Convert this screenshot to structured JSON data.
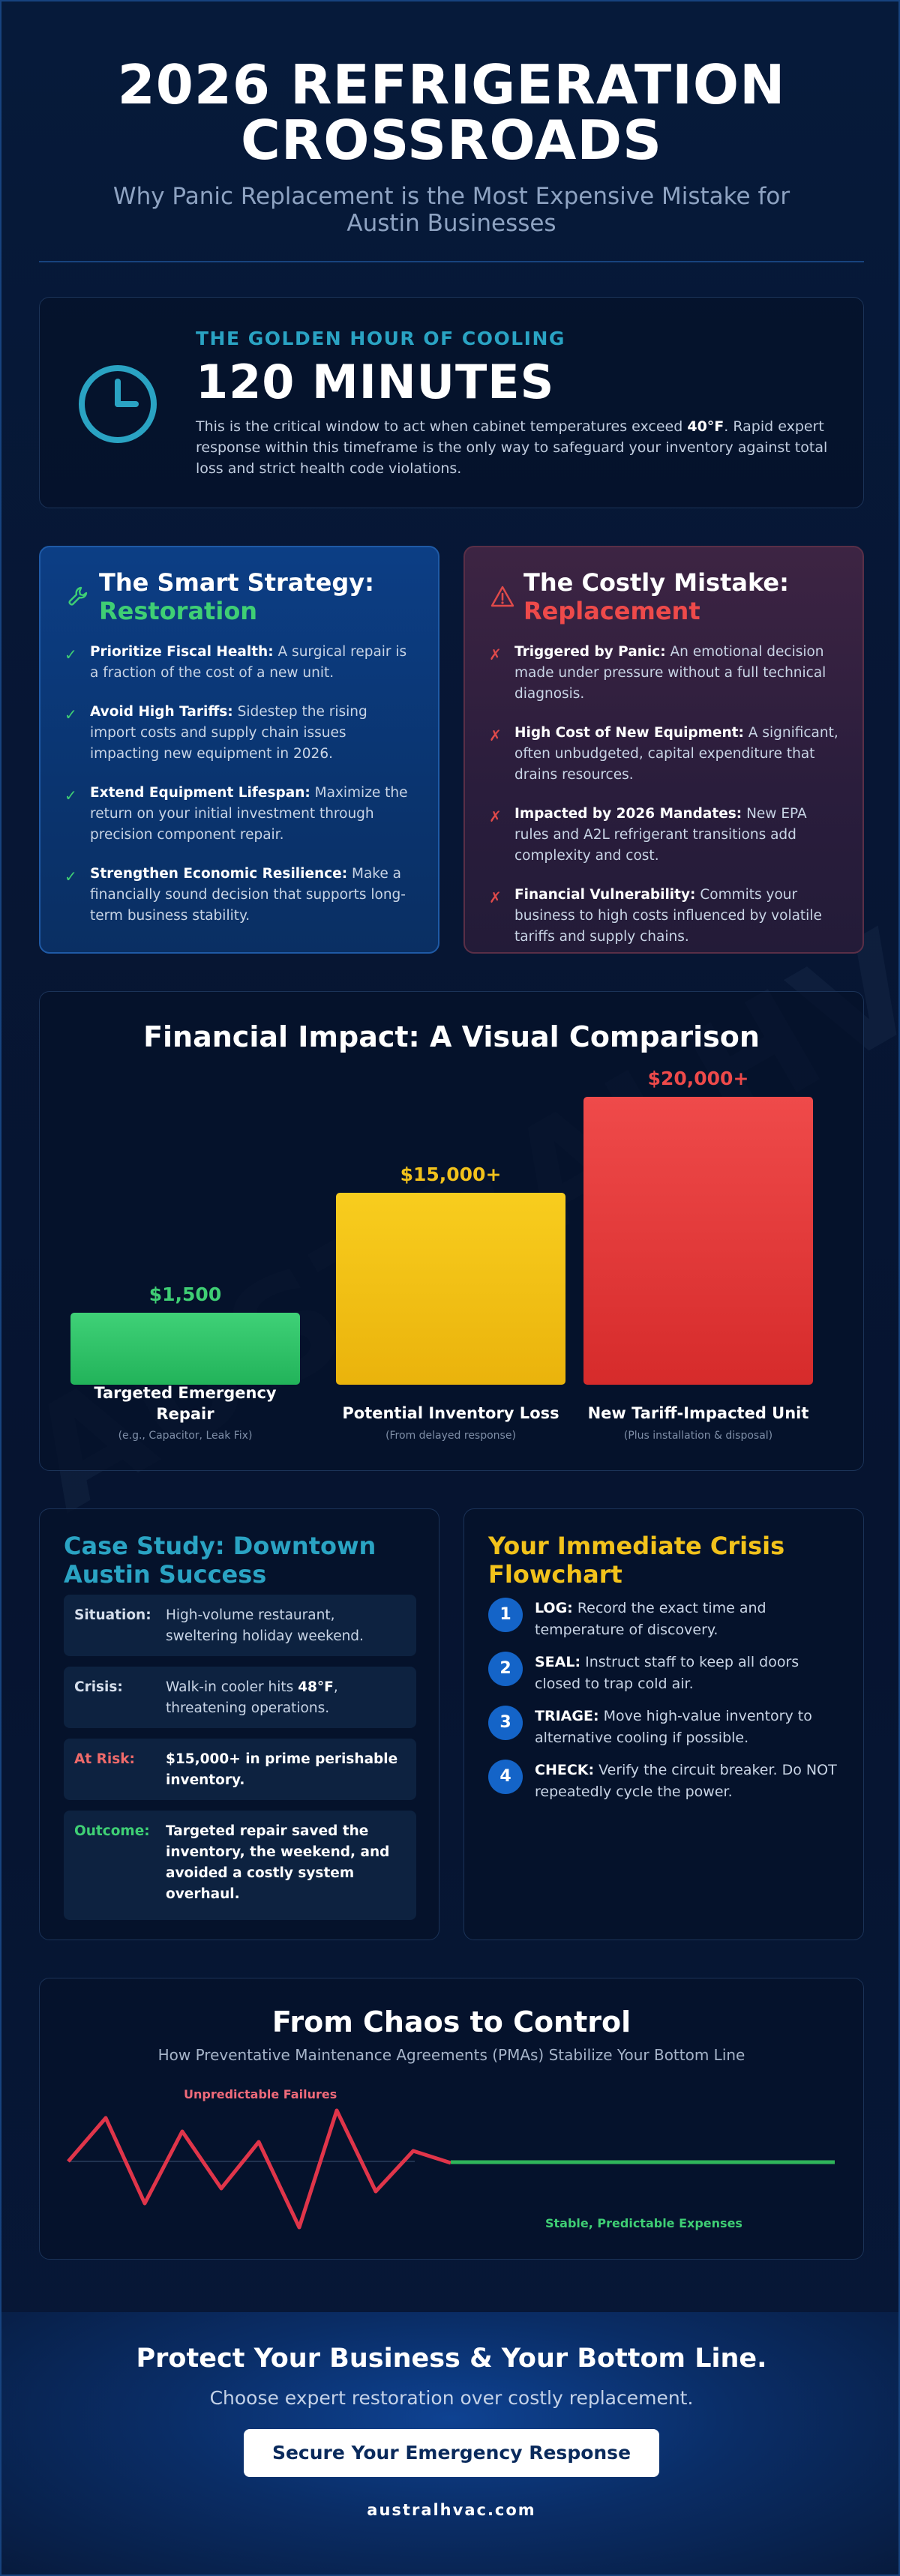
{
  "watermark": "AUSTRALHVAC",
  "header": {
    "title": "2026 REFRIGERATION CROSSROADS",
    "subtitle": "Why Panic Replacement is the Most Expensive Mistake for Austin Businesses"
  },
  "golden_hour": {
    "kicker": "THE GOLDEN HOUR OF COOLING",
    "headline": "120 MINUTES",
    "desc_before": "This is the critical window to act when cabinet temperatures exceed ",
    "desc_bold": "40°F",
    "desc_after": ". Rapid expert response within this timeframe is the only way to safeguard your inventory against total loss and strict health code violations."
  },
  "smart": {
    "title_line1": "The Smart Strategy:",
    "title_line2": "Restoration",
    "items": [
      {
        "bold": "Prioritize Fiscal Health:",
        "text": " A surgical repair is a fraction of the cost of a new unit."
      },
      {
        "bold": "Avoid High Tariffs:",
        "text": " Sidestep the rising import costs and supply chain issues impacting new equipment in 2026."
      },
      {
        "bold": "Extend Equipment Lifespan:",
        "text": " Maximize the return on your initial investment through precision component repair."
      },
      {
        "bold": "Strengthen Economic Resilience:",
        "text": " Make a financially sound decision that supports long-term business stability."
      }
    ]
  },
  "costly": {
    "title_line1": "The Costly Mistake:",
    "title_line2": "Replacement",
    "items": [
      {
        "bold": "Triggered by Panic:",
        "text": " An emotional decision made under pressure without a full technical diagnosis."
      },
      {
        "bold": "High Cost of New Equipment:",
        "text": " A significant, often unbudgeted, capital expenditure that drains resources."
      },
      {
        "bold": "Impacted by 2026 Mandates:",
        "text": " New EPA rules and A2L refrigerant transitions add complexity and cost."
      },
      {
        "bold": "Financial Vulnerability:",
        "text": " Commits your business to high costs influenced by volatile tariffs and supply chains."
      }
    ]
  },
  "chart_data": {
    "type": "bar",
    "title": "Financial Impact: A Visual Comparison",
    "categories": [
      "Targeted Emergency Repair",
      "Potential Inventory Loss",
      "New Tariff-Impacted Unit"
    ],
    "notes": [
      "(e.g., Capacitor, Leak Fix)",
      "(From delayed response)",
      "(Plus installation & disposal)"
    ],
    "values": [
      1500,
      15000,
      20000
    ],
    "value_labels": [
      "$1,500",
      "$15,000+",
      "$20,000+"
    ],
    "colors": [
      "#3fcf74",
      "#f2c21b",
      "#ee4a4a"
    ],
    "bar_heights": [
      0.26,
      0.75,
      1.0
    ]
  },
  "case_study": {
    "title": "Case Study: Downtown Austin Success",
    "rows": [
      {
        "label": "Situation:",
        "value": "High-volume restaurant, sweltering holiday weekend."
      },
      {
        "label": "Crisis:",
        "value_before": "Walk-in cooler hits ",
        "value_bold": "48°F",
        "value_after": ", threatening operations."
      },
      {
        "label": "At Risk:",
        "value": "$15,000+ in prime perishable inventory."
      },
      {
        "label": "Outcome:",
        "value": "Targeted repair saved the inventory, the weekend, and avoided a costly system overhaul."
      }
    ]
  },
  "flowchart": {
    "title": "Your Immediate Crisis Flowchart",
    "steps": [
      {
        "num": "1",
        "bold": "LOG:",
        "text": " Record the exact time and temperature of discovery."
      },
      {
        "num": "2",
        "bold": "SEAL:",
        "text": " Instruct staff to keep all doors closed to trap cold air."
      },
      {
        "num": "3",
        "bold": "TRIAGE:",
        "text": " Move high-value inventory to alternative cooling if possible."
      },
      {
        "num": "4",
        "bold": "CHECK:",
        "text": " Verify the circuit breaker. Do NOT repeatedly cycle the power."
      }
    ]
  },
  "chaos": {
    "title": "From Chaos to Control",
    "subtitle": "How Preventative Maintenance Agreements (PMAs) Stabilize Your Bottom Line",
    "label_chaos": "Unpredictable Failures",
    "label_stable": "Stable, Predictable Expenses",
    "chaos_color": "#e0354a",
    "stable_color": "#2fb55a"
  },
  "cta": {
    "title": "Protect Your Business & Your Bottom Line.",
    "subtitle": "Choose expert restoration over costly replacement.",
    "button": "Secure Your Emergency Response",
    "url": "australhvac.com"
  }
}
